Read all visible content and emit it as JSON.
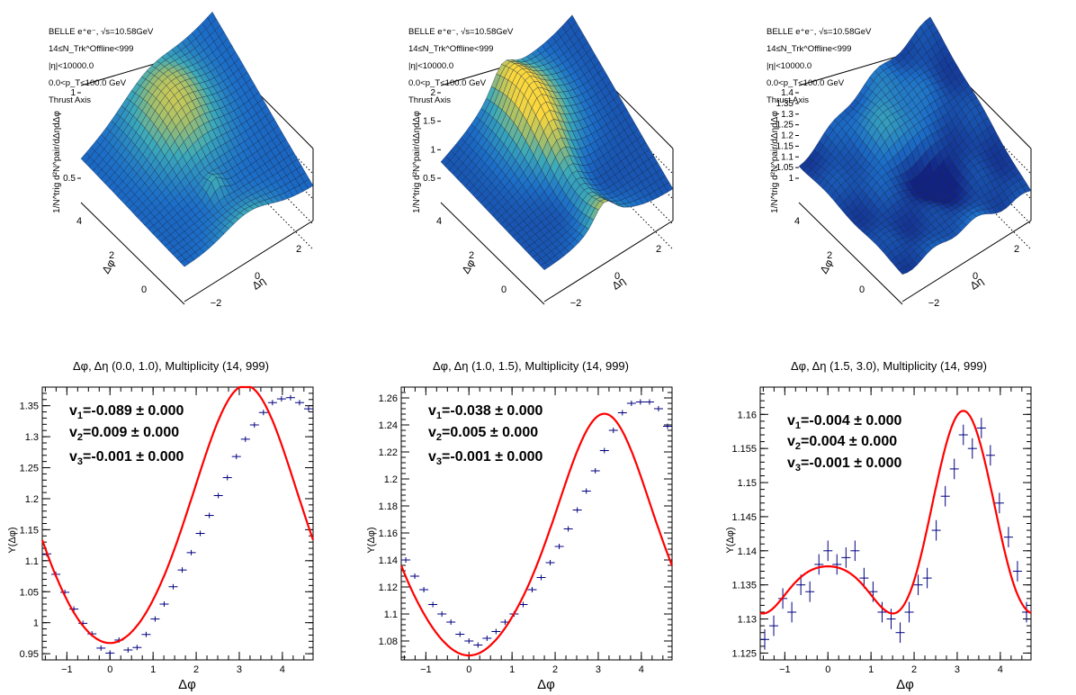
{
  "surface_panels": [
    {
      "info": [
        "BELLE e⁺e⁻, √s=10.58GeV",
        "14≤N_Trk^Offline<999",
        "|η|<10000.0",
        "0.0<p_T<100.0 GeV",
        "Thrust Axis"
      ],
      "z_label": "1/N^trig d²N^pair/dΔηdΔφ",
      "z_ticks": [
        "0.5",
        "1"
      ],
      "phi_label": "Δφ",
      "phi_ticks": [
        "0",
        "2",
        "4"
      ],
      "eta_label": "Δη",
      "eta_ticks": [
        "−2",
        "0",
        "2"
      ]
    },
    {
      "info": [
        "BELLE e⁺e⁻, √s=10.58GeV",
        "14≤N_Trk^Offline<999",
        "|η|<10000.0",
        "0.0<p_T<100.0 GeV",
        "Thrust Axis"
      ],
      "z_label": "1/N^trig d²N^pair/dΔηdΔφ",
      "z_ticks": [
        "0.5",
        "1",
        "1.5",
        "2"
      ],
      "phi_label": "Δφ",
      "phi_ticks": [
        "0",
        "2",
        "4"
      ],
      "eta_label": "Δη",
      "eta_ticks": [
        "−2",
        "0",
        "2"
      ]
    },
    {
      "info": [
        "BELLE e⁺e⁻, √s=10.58GeV",
        "14≤N_Trk^Offline<999",
        "|η|<10000.0",
        "0.0<p_T<100.0 GeV",
        "Thrust Axis"
      ],
      "z_label": "1/N^trig d²N^pair/dΔηdΔφ",
      "z_ticks": [
        "1",
        "1.05",
        "1.1",
        "1.15",
        "1.2",
        "1.25",
        "1.3",
        "1.35",
        "1.4"
      ],
      "phi_label": "Δφ",
      "phi_ticks": [
        "0",
        "2",
        "4"
      ],
      "eta_label": "Δη",
      "eta_ticks": [
        "−2",
        "0",
        "2"
      ]
    }
  ],
  "chart_data": [
    {
      "type": "scatter",
      "title": "Δφ, Δη (0.0, 1.0), Multiplicity (14, 999)",
      "xlabel": "Δφ",
      "ylabel": "Y(Δφ)",
      "xlim": [
        -1.5708,
        4.7124
      ],
      "ylim": [
        0.94,
        1.38
      ],
      "x_ticks": [
        -1,
        0,
        1,
        2,
        3,
        4
      ],
      "y_ticks": [
        0.95,
        1,
        1.05,
        1.1,
        1.15,
        1.2,
        1.25,
        1.3,
        1.35
      ],
      "y_tick_labels": [
        "0.95",
        "1",
        "1.05",
        "1.1",
        "1.15",
        "1.2",
        "1.25",
        "1.3",
        "1.35"
      ],
      "fit": {
        "a0": 1.1542,
        "v1": -0.089,
        "v2": 0.009,
        "v3": -0.001
      },
      "fit_text": [
        "-0.089 ± 0.000",
        "0.009 ± 0.000",
        "-0.001 ± 0.000"
      ],
      "x": [
        -1.466,
        -1.257,
        -1.047,
        -0.838,
        -0.628,
        -0.419,
        -0.209,
        0.0,
        0.209,
        0.419,
        0.628,
        0.838,
        1.047,
        1.257,
        1.466,
        1.676,
        1.885,
        2.094,
        2.304,
        2.513,
        2.723,
        2.932,
        3.142,
        3.351,
        3.56,
        3.77,
        3.979,
        4.189,
        4.398,
        4.608
      ],
      "y": [
        1.111,
        1.078,
        1.049,
        1.022,
        0.999,
        0.982,
        0.959,
        0.951,
        0.972,
        0.956,
        0.96,
        0.981,
        1.006,
        1.03,
        1.058,
        1.085,
        1.113,
        1.144,
        1.173,
        1.205,
        1.234,
        1.268,
        1.296,
        1.319,
        1.339,
        1.355,
        1.361,
        1.363,
        1.355,
        1.345
      ],
      "yerr": 0.002,
      "ylim_fixed": true
    },
    {
      "type": "scatter",
      "title": "Δφ, Δη (1.0, 1.5), Multiplicity (14, 999)",
      "xlabel": "Δφ",
      "ylabel": "Y(Δφ)",
      "xlim": [
        -1.5708,
        4.7124
      ],
      "ylim": [
        1.066,
        1.268
      ],
      "x_ticks": [
        -1,
        0,
        1,
        2,
        3,
        4
      ],
      "y_ticks": [
        1.08,
        1.1,
        1.12,
        1.14,
        1.16,
        1.18,
        1.2,
        1.22,
        1.24,
        1.26
      ],
      "y_tick_labels": [
        "1.08",
        "1.1",
        "1.12",
        "1.14",
        "1.16",
        "1.18",
        "1.2",
        "1.22",
        "1.24",
        "1.26"
      ],
      "fit": {
        "a0": 1.1473,
        "v1": -0.038,
        "v2": 0.005,
        "v3": -0.001
      },
      "fit_text": [
        "-0.038 ± 0.000",
        "0.005 ± 0.000",
        "-0.001 ± 0.000"
      ],
      "x": [
        -1.466,
        -1.257,
        -1.047,
        -0.838,
        -0.628,
        -0.419,
        -0.209,
        0.0,
        0.209,
        0.419,
        0.628,
        0.838,
        1.047,
        1.257,
        1.466,
        1.676,
        1.885,
        2.094,
        2.304,
        2.513,
        2.723,
        2.932,
        3.142,
        3.351,
        3.56,
        3.77,
        3.979,
        4.189,
        4.398,
        4.608
      ],
      "y": [
        1.14,
        1.128,
        1.118,
        1.107,
        1.1,
        1.094,
        1.085,
        1.08,
        1.077,
        1.082,
        1.087,
        1.094,
        1.1,
        1.107,
        1.118,
        1.127,
        1.138,
        1.15,
        1.163,
        1.177,
        1.191,
        1.206,
        1.221,
        1.236,
        1.249,
        1.256,
        1.257,
        1.257,
        1.252,
        1.239
      ]
    },
    {
      "type": "scatter",
      "title": "Δφ, Δη (1.5, 3.0), Multiplicity (14, 999)",
      "xlabel": "Δφ",
      "ylabel": "Y(Δφ)",
      "xlim": [
        -1.5708,
        4.7124
      ],
      "ylim": [
        1.124,
        1.164
      ],
      "x_ticks": [
        -1,
        0,
        1,
        2,
        3,
        4
      ],
      "y_ticks": [
        1.125,
        1.13,
        1.135,
        1.14,
        1.145,
        1.15,
        1.155,
        1.16
      ],
      "y_tick_labels": [
        "1.125",
        "1.13",
        "1.135",
        "1.14",
        "1.145",
        "1.15",
        "1.155",
        "1.16"
      ],
      "fit": {
        "a0": 1.14,
        "v1": -0.004,
        "v2": 0.004,
        "v3": -0.001
      },
      "fit_text": [
        "-0.004 ± 0.000",
        "0.004 ± 0.000",
        "-0.001 ± 0.000"
      ],
      "x": [
        -1.466,
        -1.257,
        -1.047,
        -0.838,
        -0.628,
        -0.419,
        -0.209,
        0.0,
        0.209,
        0.419,
        0.628,
        0.838,
        1.047,
        1.257,
        1.466,
        1.676,
        1.885,
        2.094,
        2.304,
        2.513,
        2.723,
        2.932,
        3.142,
        3.351,
        3.56,
        3.77,
        3.979,
        4.189,
        4.398,
        4.608
      ],
      "y": [
        1.127,
        1.129,
        1.133,
        1.131,
        1.135,
        1.134,
        1.138,
        1.14,
        1.138,
        1.139,
        1.14,
        1.136,
        1.134,
        1.131,
        1.13,
        1.128,
        1.131,
        1.135,
        1.136,
        1.143,
        1.148,
        1.152,
        1.157,
        1.155,
        1.158,
        1.154,
        1.147,
        1.142,
        1.137,
        1.131
      ],
      "yerr": 0.0015
    }
  ]
}
